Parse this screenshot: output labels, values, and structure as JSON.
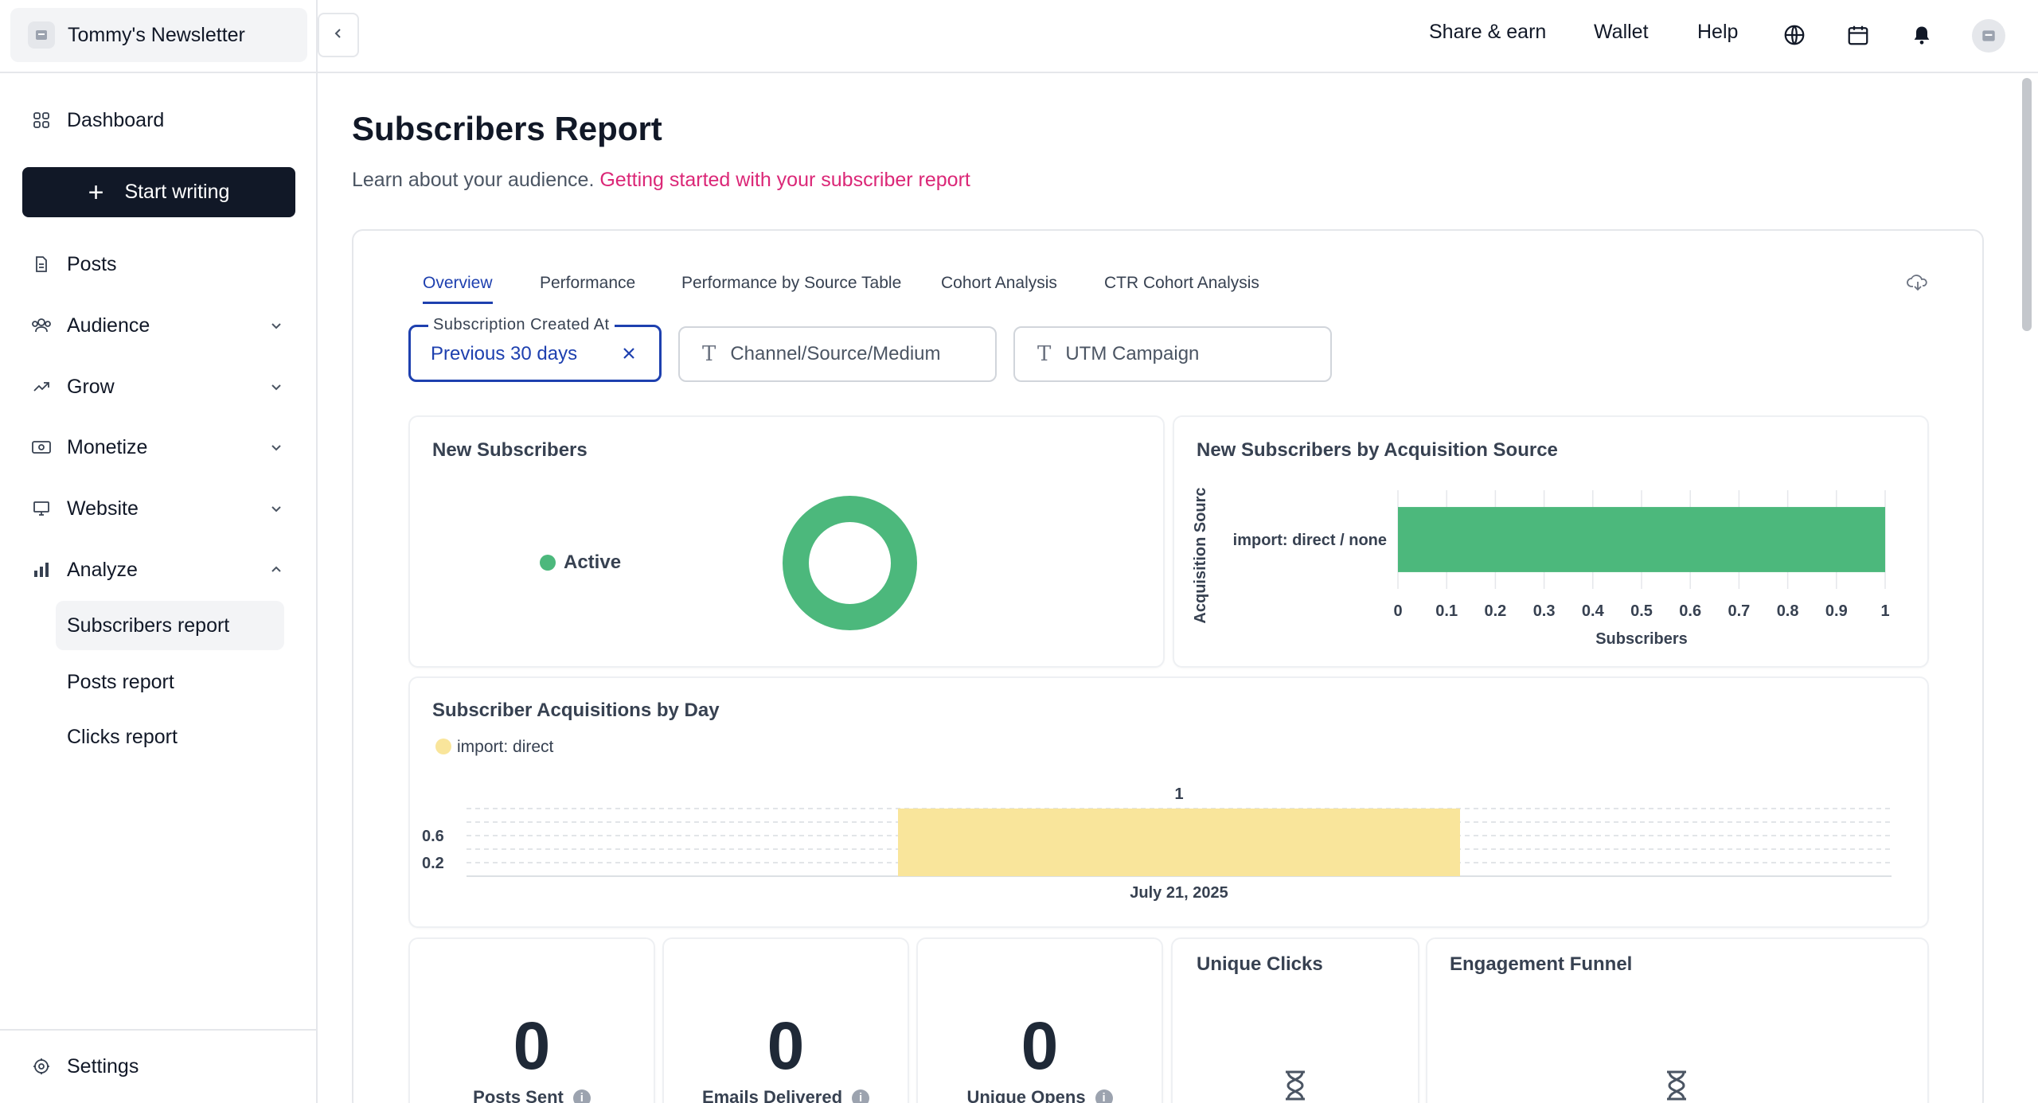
{
  "sidebar": {
    "publication_name": "Tommy's Newsletter",
    "dashboard": "Dashboard",
    "start_writing": "Start writing",
    "posts": "Posts",
    "audience": "Audience",
    "grow": "Grow",
    "monetize": "Monetize",
    "website": "Website",
    "analyze": "Analyze",
    "analyze_items": [
      "Subscribers report",
      "Posts report",
      "Clicks report"
    ],
    "settings": "Settings"
  },
  "header": {
    "share_earn": "Share & earn",
    "wallet": "Wallet",
    "help": "Help",
    "icons": [
      "globe-icon",
      "calendar-icon",
      "bell-icon",
      "user-avatar"
    ]
  },
  "page": {
    "title": "Subscribers Report",
    "subtitle": "Learn about your audience.",
    "subtitle_link": "Getting started with your subscriber report"
  },
  "tabs": [
    "Overview",
    "Performance",
    "Performance by Source Table",
    "Cohort Analysis",
    "CTR Cohort Analysis"
  ],
  "filters": {
    "date_label": "Subscription Created At",
    "date_value": "Previous 30 days",
    "channel_placeholder": "Channel/Source/Medium",
    "utm_placeholder": "UTM Campaign"
  },
  "panels": {
    "new_subscribers": {
      "title": "New Subscribers",
      "legend": "Active"
    },
    "by_source": {
      "title": "New Subscribers by Acquisition Source"
    },
    "by_day": {
      "title": "Subscriber Acquisitions by Day"
    },
    "unique_clicks": {
      "title": "Unique Clicks"
    },
    "engagement_funnel": {
      "title": "Engagement Funnel"
    }
  },
  "stats": [
    {
      "value": "0",
      "label": "Posts Sent"
    },
    {
      "value": "0",
      "label": "Emails Delivered"
    },
    {
      "value": "0",
      "label": "Unique Opens"
    }
  ],
  "colors": {
    "brand_dark": "#111827",
    "accent_blue": "#1e40af",
    "link_pink": "#db2777",
    "green": "#4cb87c",
    "yellow": "#f9e59b"
  },
  "chart_data": [
    {
      "type": "pie",
      "title": "New Subscribers",
      "categories": [
        "Active"
      ],
      "values": [
        1
      ],
      "colors": [
        "#4cb87c"
      ],
      "legend_position": "left"
    },
    {
      "type": "bar",
      "orientation": "horizontal",
      "title": "New Subscribers by Acquisition Source",
      "categories": [
        "import: direct / none"
      ],
      "values": [
        1
      ],
      "xlabel": "Subscribers",
      "ylabel": "Acquisition Sourc",
      "xlim": [
        0,
        1
      ],
      "xticks": [
        "0",
        "0.1",
        "0.2",
        "0.3",
        "0.4",
        "0.5",
        "0.6",
        "0.7",
        "0.8",
        "0.9",
        "1"
      ],
      "colors": [
        "#4cb87c"
      ],
      "grid": true
    },
    {
      "type": "bar",
      "title": "Subscriber Acquisitions by Day",
      "categories": [
        "July 21, 2025"
      ],
      "series": [
        {
          "name": "import: direct",
          "values": [
            1
          ]
        }
      ],
      "data_labels": [
        "1"
      ],
      "yticks": [
        "0.2",
        "0.6"
      ],
      "colors": [
        "#f9e59b"
      ],
      "legend_position": "top-left",
      "grid": true
    }
  ]
}
